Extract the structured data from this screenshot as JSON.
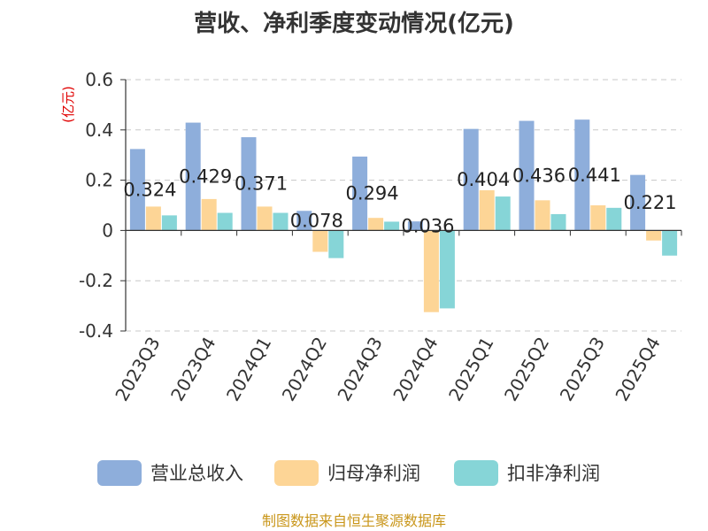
{
  "chart_data": {
    "type": "bar",
    "title": "营收、净利季度变动情况(亿元)",
    "ylabel": "(亿元)",
    "xlabel": "",
    "ylim": [
      -0.4,
      0.6
    ],
    "yticks": [
      "0.6",
      "0.4",
      "0.2",
      "0",
      "-0.2",
      "-0.4"
    ],
    "categories": [
      "2023Q3",
      "2023Q4",
      "2024Q1",
      "2024Q2",
      "2024Q3",
      "2024Q4",
      "2025Q1",
      "2025Q2",
      "2025Q3",
      "2025Q4"
    ],
    "series": [
      {
        "name": "营业总收入",
        "color": "#8eaedb",
        "values": [
          0.324,
          0.429,
          0.371,
          0.078,
          0.294,
          0.036,
          0.404,
          0.436,
          0.441,
          0.221
        ]
      },
      {
        "name": "归母净利润",
        "color": "#fdd596",
        "values": [
          0.095,
          0.125,
          0.095,
          -0.085,
          0.05,
          -0.325,
          0.16,
          0.12,
          0.1,
          -0.04
        ]
      },
      {
        "name": "扣非净利润",
        "color": "#86d5d7",
        "values": [
          0.06,
          0.07,
          0.07,
          -0.11,
          0.035,
          -0.31,
          0.135,
          0.065,
          0.09,
          -0.1
        ]
      }
    ],
    "data_labels": [
      "0.324",
      "0.429",
      "0.371",
      "0.078",
      "0.294",
      "0.036",
      "0.404",
      "0.436",
      "0.441",
      "0.221"
    ],
    "grid": true,
    "legend_position": "bottom"
  },
  "source": "制图数据来自恒生聚源数据库"
}
